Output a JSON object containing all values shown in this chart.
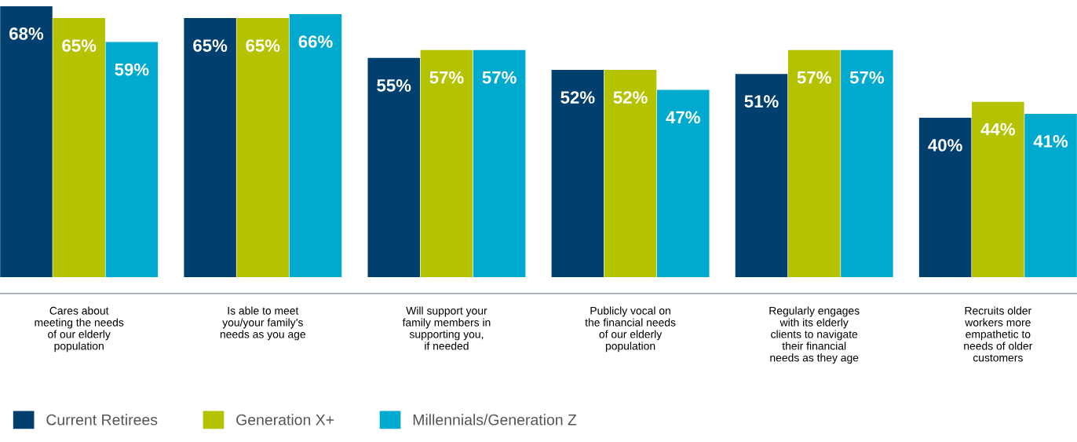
{
  "chart_data": {
    "type": "bar",
    "categories": [
      "Cares about\nmeeting the needs\nof our elderly\npopulation",
      "Is able to meet\nyou/your family’s\nneeds as you age",
      "Will support your\nfamily members in\nsupporting you,\nif needed",
      "Publicly vocal on\nthe financial needs\nof our elderly\npopulation",
      "Regularly engages\nwith its elderly\nclients to navigate\ntheir financial\nneeds as they age",
      "Recruits older\nworkers more\nempathetic to\nneeds of older\ncustomers"
    ],
    "series": [
      {
        "name": "Current Retirees",
        "color": "#003f6e",
        "values": [
          68,
          65,
          55,
          52,
          51,
          40
        ],
        "value_labels": [
          "68%",
          "65%",
          "55%",
          "52%",
          "51%",
          "40%"
        ]
      },
      {
        "name": "Generation X+",
        "color": "#b5c200",
        "values": [
          65,
          65,
          57,
          52,
          57,
          44
        ],
        "value_labels": [
          "65%",
          "65%",
          "57%",
          "52%",
          "57%",
          "44%"
        ]
      },
      {
        "name": "Millennials/Generation Z",
        "color": "#00a9ce",
        "values": [
          59,
          66,
          57,
          47,
          57,
          41
        ],
        "value_labels": [
          "59%",
          "66%",
          "57%",
          "47%",
          "57%",
          "41%"
        ]
      }
    ],
    "legend": "bottom left"
  }
}
